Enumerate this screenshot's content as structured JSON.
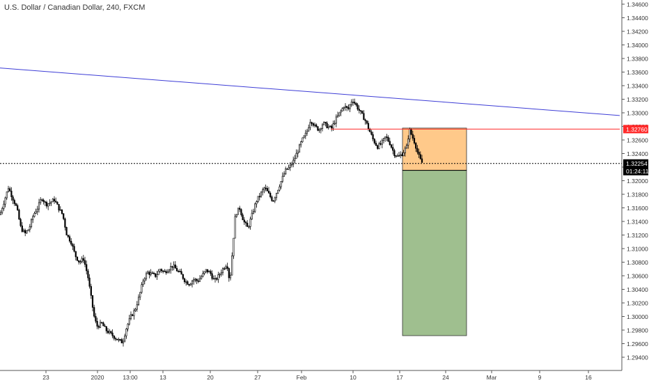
{
  "colors": {
    "background": "#ffffff",
    "bull_candle": "#ffffff",
    "bear_candle": "#000000",
    "candle_outline": "#000000",
    "trendline": "#3c3cd6",
    "horizontal_line": "#ff2a2a",
    "price_label_red": "#ff2a2a",
    "stop_zone": "#ffc98a",
    "target_zone": "#9fbf8f",
    "current_price_label": "#000000",
    "axis_text": "#333333",
    "axis_line": "#555555"
  },
  "chart_data": {
    "type": "candlestick",
    "title": "U.S. Dollar / Canadian Dollar, 240, FXCM",
    "ylim": [
      1.2935,
      1.3468
    ],
    "xlim": [
      0,
      884
    ],
    "y_ticks": [
      "1.34600",
      "1.34400",
      "1.34200",
      "1.34000",
      "1.33800",
      "1.33600",
      "1.33400",
      "1.33200",
      "1.33000",
      "1.32800",
      "1.32600",
      "1.32400",
      "1.32200",
      "1.32000",
      "1.31800",
      "1.31600",
      "1.31400",
      "1.31200",
      "1.31000",
      "1.30800",
      "1.30600",
      "1.30400",
      "1.30200",
      "1.30000",
      "1.29800",
      "1.29600",
      "1.29400"
    ],
    "x_ticks": [
      {
        "label": "23",
        "x": 66
      },
      {
        "label": "2020",
        "x": 140
      },
      {
        "label": "13:00",
        "x": 187
      },
      {
        "label": "13",
        "x": 234
      },
      {
        "label": "20",
        "x": 302
      },
      {
        "label": "27",
        "x": 370
      },
      {
        "label": "Feb",
        "x": 433
      },
      {
        "label": "10",
        "x": 507
      },
      {
        "label": "17",
        "x": 574
      },
      {
        "label": "24",
        "x": 640
      },
      {
        "label": "Mar",
        "x": 706
      },
      {
        "label": "9",
        "x": 775
      },
      {
        "label": "16",
        "x": 845
      }
    ],
    "price_path": [
      [
        0,
        1.315
      ],
      [
        6,
        1.317
      ],
      [
        12,
        1.319
      ],
      [
        18,
        1.3175
      ],
      [
        24,
        1.316
      ],
      [
        30,
        1.313
      ],
      [
        36,
        1.3122
      ],
      [
        42,
        1.313
      ],
      [
        48,
        1.315
      ],
      [
        54,
        1.316
      ],
      [
        60,
        1.3175
      ],
      [
        66,
        1.3165
      ],
      [
        72,
        1.3168
      ],
      [
        78,
        1.3172
      ],
      [
        84,
        1.316
      ],
      [
        90,
        1.315
      ],
      [
        96,
        1.312
      ],
      [
        102,
        1.311
      ],
      [
        108,
        1.309
      ],
      [
        114,
        1.308
      ],
      [
        120,
        1.3085
      ],
      [
        126,
        1.306
      ],
      [
        132,
        1.302
      ],
      [
        136,
        1.2995
      ],
      [
        140,
        1.2985
      ],
      [
        146,
        1.299
      ],
      [
        152,
        1.298
      ],
      [
        158,
        1.2975
      ],
      [
        164,
        1.297
      ],
      [
        170,
        1.2965
      ],
      [
        176,
        1.2962
      ],
      [
        182,
        1.2985
      ],
      [
        188,
        1.3
      ],
      [
        194,
        1.301
      ],
      [
        200,
        1.303
      ],
      [
        206,
        1.3055
      ],
      [
        212,
        1.3065
      ],
      [
        218,
        1.3062
      ],
      [
        224,
        1.306
      ],
      [
        230,
        1.307
      ],
      [
        236,
        1.3065
      ],
      [
        242,
        1.307
      ],
      [
        248,
        1.3075
      ],
      [
        254,
        1.3068
      ],
      [
        260,
        1.3062
      ],
      [
        266,
        1.3052
      ],
      [
        272,
        1.3048
      ],
      [
        278,
        1.3055
      ],
      [
        284,
        1.3052
      ],
      [
        290,
        1.306
      ],
      [
        296,
        1.3068
      ],
      [
        302,
        1.3064
      ],
      [
        308,
        1.3052
      ],
      [
        314,
        1.306
      ],
      [
        320,
        1.307
      ],
      [
        326,
        1.3078
      ],
      [
        330,
        1.305
      ],
      [
        334,
        1.31
      ],
      [
        338,
        1.315
      ],
      [
        344,
        1.316
      ],
      [
        350,
        1.314
      ],
      [
        356,
        1.313
      ],
      [
        362,
        1.315
      ],
      [
        368,
        1.317
      ],
      [
        374,
        1.318
      ],
      [
        380,
        1.319
      ],
      [
        386,
        1.318
      ],
      [
        392,
        1.317
      ],
      [
        398,
        1.3185
      ],
      [
        404,
        1.32
      ],
      [
        410,
        1.3215
      ],
      [
        416,
        1.322
      ],
      [
        422,
        1.323
      ],
      [
        428,
        1.3245
      ],
      [
        434,
        1.326
      ],
      [
        440,
        1.327
      ],
      [
        446,
        1.329
      ],
      [
        452,
        1.328
      ],
      [
        458,
        1.3275
      ],
      [
        464,
        1.3285
      ],
      [
        470,
        1.328
      ],
      [
        476,
        1.3277
      ],
      [
        482,
        1.329
      ],
      [
        488,
        1.33
      ],
      [
        494,
        1.331
      ],
      [
        500,
        1.3305
      ],
      [
        506,
        1.332
      ],
      [
        512,
        1.331
      ],
      [
        518,
        1.33
      ],
      [
        524,
        1.329
      ],
      [
        530,
        1.3275
      ],
      [
        536,
        1.326
      ],
      [
        542,
        1.325
      ],
      [
        548,
        1.3255
      ],
      [
        554,
        1.3265
      ],
      [
        560,
        1.3255
      ],
      [
        566,
        1.324
      ],
      [
        572,
        1.3235
      ],
      [
        578,
        1.324
      ],
      [
        584,
        1.325
      ],
      [
        588,
        1.3275
      ],
      [
        592,
        1.3265
      ],
      [
        596,
        1.3255
      ],
      [
        600,
        1.324
      ],
      [
        604,
        1.323
      ],
      [
        607,
        1.3225
      ]
    ],
    "trendline": {
      "x": [
        0,
        890
      ],
      "y": [
        1.3366,
        1.3296
      ]
    },
    "horizontal_line": {
      "x_start": 475,
      "x_end": 890,
      "y": 1.3276
    },
    "current_price_line": {
      "y": 1.32254
    },
    "position": {
      "x_start": 578,
      "x_end": 670,
      "entry": 1.32153,
      "stop": 1.32775,
      "target": 1.29718
    },
    "price_labels": {
      "horizontal": "1.32760",
      "current": "1.32254",
      "countdown": "01:24:11"
    }
  }
}
